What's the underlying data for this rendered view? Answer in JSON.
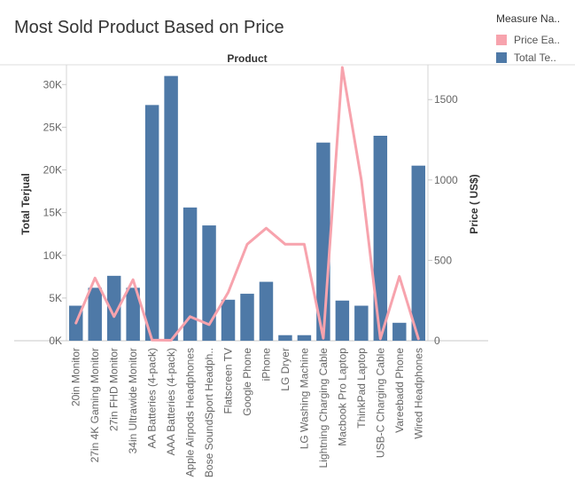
{
  "chart_data": {
    "type": "bar+line",
    "title": "Most Sold Product Based on Price",
    "column_header": "Product",
    "categories": [
      "20in Monitor",
      "27in 4K Gaming Monitor",
      "27in FHD Monitor",
      "34in Ultrawide Monitor",
      "AA Batteries (4-pack)",
      "AAA Batteries (4-pack)",
      "Apple Airpods Headphones",
      "Bose SoundSport Headph..",
      "Flatscreen TV",
      "Google Phone",
      "iPhone",
      "LG Dryer",
      "LG Washing Machine",
      "Lightning Charging Cable",
      "Macbook Pro Laptop",
      "ThinkPad Laptop",
      "USB-C Charging Cable",
      "Vareebadd Phone",
      "Wired Headphones"
    ],
    "series": [
      {
        "name": "Total Te..",
        "type": "bar",
        "axis": "left",
        "values": [
          4100,
          6200,
          7600,
          6200,
          27600,
          31000,
          15600,
          13500,
          4800,
          5500,
          6900,
          650,
          650,
          23200,
          4700,
          4100,
          24000,
          2100,
          20500
        ]
      },
      {
        "name": "Price Ea..",
        "type": "line",
        "axis": "right",
        "values": [
          110,
          390,
          150,
          380,
          4,
          3,
          150,
          100,
          300,
          600,
          700,
          600,
          600,
          15,
          1700,
          1000,
          12,
          400,
          12
        ]
      }
    ],
    "y_left": {
      "label": "Total Terjual",
      "ylim": [
        0,
        32000
      ],
      "ticks": [
        0,
        5000,
        10000,
        15000,
        20000,
        25000,
        30000
      ],
      "tick_labels": [
        "0K",
        "5K",
        "10K",
        "15K",
        "20K",
        "25K",
        "30K"
      ]
    },
    "y_right": {
      "label": "Price ( US$)",
      "ylim": [
        0,
        1700
      ],
      "ticks": [
        0,
        500,
        1000,
        1500
      ],
      "tick_labels": [
        "0",
        "500",
        "1000",
        "1500"
      ]
    },
    "legend": {
      "title": "Measure Na..",
      "placement": "top-right",
      "items": [
        {
          "label": "Price Ea..",
          "color": "#f7a3ad"
        },
        {
          "label": "Total Te..",
          "color": "#4e79a7"
        }
      ]
    },
    "colors": {
      "bar": "#4e79a7",
      "line": "#f7a3ad"
    }
  }
}
